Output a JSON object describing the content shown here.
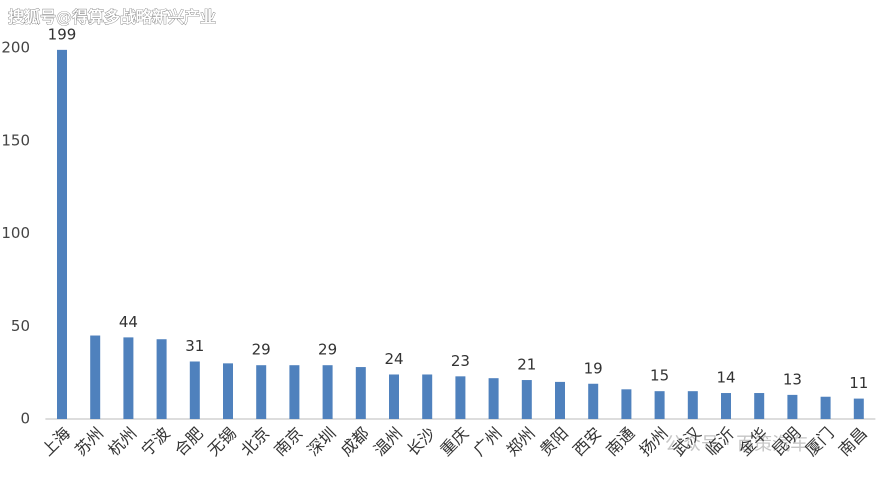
{
  "watermark_top": "搜狐号@得算多战略新兴产业",
  "watermark_bottom": "公众号 · 百策汽车",
  "chart_data": {
    "type": "bar",
    "categories": [
      "上海",
      "苏州",
      "杭州",
      "宁波",
      "合肥",
      "无锡",
      "北京",
      "南京",
      "深圳",
      "成都",
      "温州",
      "长沙",
      "重庆",
      "广州",
      "郑州",
      "贵阳",
      "西安",
      "南通",
      "扬州",
      "武汉",
      "临沂",
      "金华",
      "昆明",
      "厦门",
      "南昌"
    ],
    "values": [
      199,
      45,
      44,
      43,
      31,
      30,
      29,
      29,
      29,
      28,
      24,
      24,
      23,
      22,
      21,
      20,
      19,
      16,
      15,
      15,
      14,
      14,
      13,
      12,
      11
    ],
    "value_labels": [
      "199",
      null,
      "44",
      null,
      "31",
      null,
      "29",
      null,
      "29",
      null,
      "24",
      null,
      "23",
      null,
      "21",
      null,
      "19",
      null,
      "15",
      null,
      "14",
      null,
      "13",
      null,
      "11"
    ],
    "color": "#4f81bd",
    "ylim": [
      0,
      200
    ],
    "yticks": [
      0,
      50,
      100,
      150,
      200
    ],
    "grid": false
  }
}
